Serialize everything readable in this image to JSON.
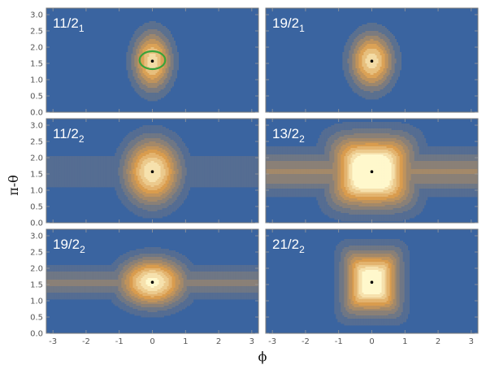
{
  "chart_data": {
    "type": "heatmap",
    "xlabel": "ϕ",
    "ylabel": "π-θ",
    "xlim": [
      -3.2,
      3.2
    ],
    "ylim": [
      0.0,
      3.2
    ],
    "x_ticks": [
      "-3",
      "-2",
      "-1",
      "0",
      "1",
      "2",
      "3"
    ],
    "y_ticks": [
      "0.0",
      "0.5",
      "1.0",
      "1.5",
      "2.0",
      "2.5",
      "3.0"
    ],
    "colors": {
      "background": "#3a64a0",
      "low": "#3a64a0",
      "mid": "#d99c4e",
      "high": "#fff8cc",
      "marker": "#000000",
      "circle": "#3aa33a"
    },
    "panels": [
      {
        "label": "11/2",
        "subscript": "1",
        "row": 0,
        "col": 0,
        "peak": {
          "phi": 0,
          "theta": 1.57
        },
        "blob": {
          "sx": 0.55,
          "sy": 0.85,
          "power": 2,
          "levels": 8,
          "gain": 0.95,
          "sep": 0.0
        },
        "circle": {
          "phi": 0,
          "theta": 1.6,
          "r": 0.25
        }
      },
      {
        "label": "19/2",
        "subscript": "1",
        "row": 0,
        "col": 1,
        "peak": {
          "phi": 0,
          "theta": 1.57
        },
        "blob": {
          "sx": 0.62,
          "sy": 0.82,
          "power": 2,
          "levels": 8,
          "gain": 0.95,
          "sep": 0.0
        }
      },
      {
        "label": "11/2",
        "subscript": "2",
        "row": 1,
        "col": 0,
        "peak": {
          "phi": 0,
          "theta": 1.57
        },
        "blob": {
          "sx": 0.8,
          "sy": 0.95,
          "power": 2,
          "levels": 10,
          "gain": 1.0,
          "bridge": 0.18,
          "sep": 0.0
        }
      },
      {
        "label": "13/2",
        "subscript": "2",
        "row": 1,
        "col": 1,
        "peak": {
          "phi": 0,
          "theta": 1.57
        },
        "blob": {
          "sx": 1.05,
          "sy": 0.95,
          "power": 4,
          "levels": 10,
          "gain": 1.35,
          "bridge": 0.3,
          "sep": 0.0
        }
      },
      {
        "label": "19/2",
        "subscript": "2",
        "row": 2,
        "col": 0,
        "peak": {
          "phi": 0,
          "theta": 1.57
        },
        "blob": {
          "sx": 0.95,
          "sy": 0.7,
          "power": 2,
          "levels": 10,
          "gain": 1.05,
          "bridge": 0.3,
          "sep": 0.0
        }
      },
      {
        "label": "21/2",
        "subscript": "2",
        "row": 2,
        "col": 1,
        "peak": {
          "phi": 0,
          "theta": 1.57
        },
        "blob": {
          "sx": 0.72,
          "sy": 0.85,
          "power": 6,
          "levels": 10,
          "gain": 1.2,
          "bridge": 0.0,
          "sep": 0.0
        }
      }
    ]
  }
}
